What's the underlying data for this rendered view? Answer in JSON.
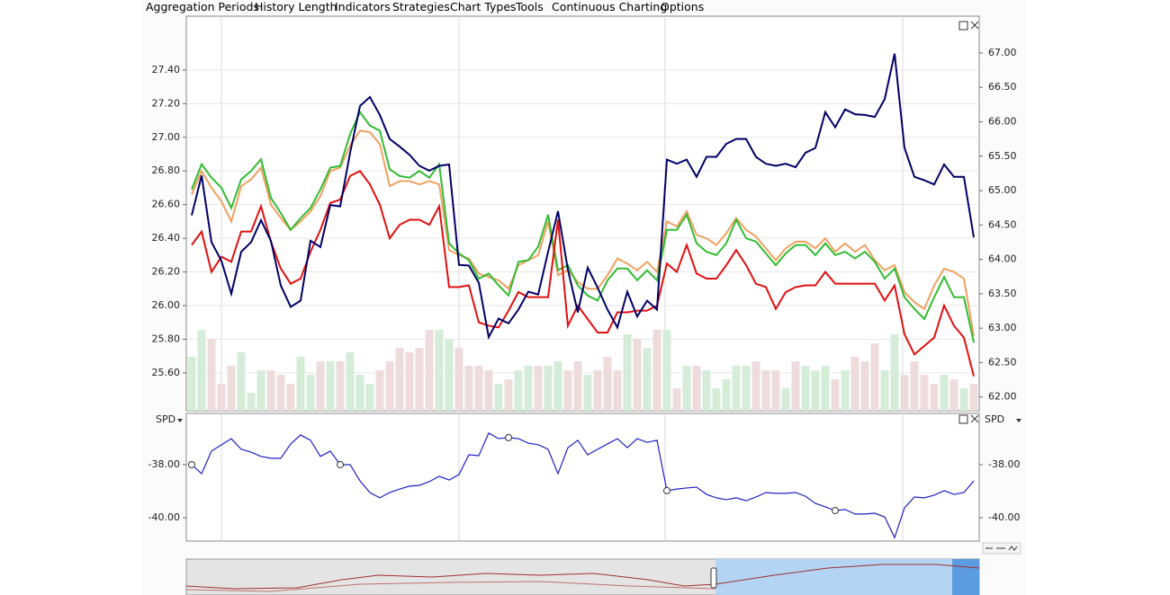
{
  "menu": [
    "Aggregation Periods",
    "History Length",
    "Indicators",
    "Strategies",
    "Chart Types",
    "Tools",
    "Continuous Charting",
    "Options"
  ],
  "chart_data": [
    {
      "type": "line",
      "ylim": [
        25.375,
        27.72
      ],
      "yticks": [
        {
          "value": 25.6,
          "label": "25.60"
        },
        {
          "value": 25.8,
          "label": "25.80"
        },
        {
          "value": 26.0,
          "label": "26.00"
        },
        {
          "value": 26.2,
          "label": "26.20"
        },
        {
          "value": 26.4,
          "label": "26.40"
        },
        {
          "value": 26.6,
          "label": "26.60"
        },
        {
          "value": 26.8,
          "label": "26.80"
        },
        {
          "value": 27.0,
          "label": "27.00"
        },
        {
          "value": 27.2,
          "label": "27.20"
        },
        {
          "value": 27.4,
          "label": "27.40"
        }
      ],
      "y2lim": [
        61.8,
        67.535
      ],
      "y2ticks": [
        {
          "value": 62.0,
          "label": "62.00"
        },
        {
          "value": 62.5,
          "label": "62.50"
        },
        {
          "value": 63.0,
          "label": "63.00"
        },
        {
          "value": 63.5,
          "label": "63.50"
        },
        {
          "value": 64.0,
          "label": "64.00"
        },
        {
          "value": 64.5,
          "label": "64.50"
        },
        {
          "value": 65.0,
          "label": "65.00"
        },
        {
          "value": 65.5,
          "label": "65.50"
        },
        {
          "value": 66.0,
          "label": "66.00"
        },
        {
          "value": 66.5,
          "label": "66.50"
        },
        {
          "value": 67.0,
          "label": "67.00"
        }
      ],
      "grid": true,
      "volume": {
        "up_color": "#d4ecd8",
        "down_color": "#eedcdc",
        "values": [
          60,
          90,
          80,
          30,
          50,
          65,
          20,
          45,
          45,
          40,
          30,
          60,
          40,
          55,
          55,
          55,
          65,
          40,
          30,
          45,
          55,
          70,
          65,
          70,
          90,
          90,
          80,
          70,
          50,
          50,
          45,
          30,
          35,
          45,
          50,
          50,
          50,
          55,
          45,
          55,
          40,
          45,
          60,
          45,
          85,
          80,
          70,
          90,
          90,
          25,
          50,
          50,
          45,
          25,
          35,
          50,
          50,
          55,
          45,
          45,
          25,
          55,
          50,
          45,
          50,
          35,
          45,
          60,
          55,
          75,
          45,
          85,
          40,
          55,
          40,
          30,
          40,
          35,
          25,
          30
        ]
      },
      "series": [
        {
          "color": "#f0a060",
          "values": [
            26.66,
            26.8,
            26.7,
            26.62,
            26.5,
            26.71,
            26.75,
            26.82,
            26.6,
            26.52,
            26.45,
            26.5,
            26.56,
            26.65,
            26.8,
            26.82,
            26.95,
            27.04,
            27.03,
            26.96,
            26.71,
            26.74,
            26.74,
            26.72,
            26.74,
            26.72,
            26.33,
            26.3,
            26.28,
            26.19,
            26.17,
            26.15,
            26.1,
            26.24,
            26.27,
            26.3,
            26.5,
            26.18,
            26.21,
            26.14,
            26.1,
            26.1,
            26.18,
            26.28,
            26.25,
            26.21,
            26.26,
            26.2,
            26.5,
            26.47,
            26.56,
            26.42,
            26.4,
            26.36,
            26.43,
            26.52,
            26.45,
            26.41,
            26.34,
            26.27,
            26.34,
            26.38,
            26.38,
            26.34,
            26.4,
            26.32,
            26.37,
            26.32,
            26.36,
            26.27,
            26.21,
            26.24,
            26.08,
            26.02,
            25.98,
            26.12,
            26.22,
            26.2,
            26.16,
            25.82
          ]
        },
        {
          "color": "#33bb33",
          "values": [
            26.69,
            26.84,
            26.76,
            26.7,
            26.58,
            26.75,
            26.8,
            26.87,
            26.64,
            26.55,
            26.45,
            26.52,
            26.58,
            26.69,
            26.82,
            26.83,
            27.02,
            27.15,
            27.07,
            27.04,
            26.81,
            26.77,
            26.76,
            26.8,
            26.76,
            26.84,
            26.37,
            26.31,
            26.27,
            26.16,
            26.19,
            26.12,
            26.06,
            26.26,
            26.27,
            26.35,
            26.54,
            26.21,
            26.24,
            26.12,
            26.06,
            26.03,
            26.15,
            26.22,
            26.22,
            26.15,
            26.21,
            26.15,
            26.45,
            26.45,
            26.54,
            26.37,
            26.32,
            26.3,
            26.37,
            26.51,
            26.4,
            26.38,
            26.31,
            26.24,
            26.31,
            26.36,
            26.36,
            26.3,
            26.37,
            26.3,
            26.32,
            26.28,
            26.32,
            26.26,
            26.16,
            26.22,
            26.05,
            25.98,
            25.92,
            26.05,
            26.17,
            26.05,
            26.05,
            25.78
          ]
        },
        {
          "color": "#e01010",
          "values": [
            26.36,
            26.44,
            26.2,
            26.29,
            26.26,
            26.44,
            26.44,
            26.59,
            26.38,
            26.22,
            26.13,
            26.16,
            26.32,
            26.45,
            26.61,
            26.63,
            26.77,
            26.8,
            26.72,
            26.6,
            26.4,
            26.48,
            26.51,
            26.51,
            26.48,
            26.59,
            26.11,
            26.11,
            26.12,
            25.9,
            25.88,
            25.87,
            25.97,
            26.08,
            26.05,
            26.05,
            26.05,
            26.51,
            25.88,
            26.0,
            25.92,
            25.84,
            25.84,
            25.96,
            25.96,
            25.97,
            25.97,
            26.0,
            26.25,
            26.2,
            26.36,
            26.19,
            26.16,
            26.16,
            26.24,
            26.33,
            26.24,
            26.13,
            26.11,
            25.98,
            26.08,
            26.11,
            26.12,
            26.12,
            26.2,
            26.13,
            26.13,
            26.13,
            26.13,
            26.13,
            26.03,
            26.12,
            25.83,
            25.71,
            25.76,
            25.81,
            26.0,
            25.88,
            25.81,
            25.58
          ]
        },
        {
          "color": "#000066",
          "axis": "y2",
          "values": [
            64.64,
            65.22,
            64.25,
            63.98,
            63.5,
            64.11,
            64.25,
            64.57,
            64.27,
            63.62,
            63.31,
            63.4,
            64.27,
            64.18,
            64.79,
            64.77,
            65.55,
            66.23,
            66.36,
            66.1,
            65.75,
            65.64,
            65.52,
            65.36,
            65.29,
            65.36,
            65.38,
            63.92,
            63.91,
            63.66,
            62.87,
            63.14,
            63.07,
            63.27,
            63.53,
            63.49,
            64.11,
            64.7,
            63.85,
            63.23,
            63.88,
            63.59,
            63.27,
            63.01,
            63.53,
            63.17,
            63.4,
            63.27,
            65.45,
            65.39,
            65.45,
            65.2,
            65.49,
            65.49,
            65.68,
            65.75,
            65.75,
            65.49,
            65.39,
            65.36,
            65.39,
            65.34,
            65.55,
            65.62,
            66.14,
            65.92,
            66.18,
            66.11,
            66.1,
            66.07,
            66.33,
            66.99,
            65.62,
            65.2,
            65.15,
            65.09,
            65.38,
            65.2,
            65.2,
            64.32
          ]
        }
      ]
    },
    {
      "type": "line",
      "label": "SPD",
      "ylim": [
        -40.88,
        -36.07
      ],
      "yticks": [
        {
          "value": -40,
          "label": "-40.00"
        },
        {
          "value": -38,
          "label": "-38.00"
        }
      ],
      "series": [
        {
          "color": "#2020c0",
          "markers": [
            0,
            15,
            32,
            48,
            65
          ],
          "values": [
            -38.0,
            -38.34,
            -37.49,
            -37.25,
            -37.02,
            -37.42,
            -37.53,
            -37.69,
            -37.76,
            -37.76,
            -37.22,
            -36.88,
            -37.08,
            -37.69,
            -37.49,
            -38.0,
            -38.0,
            -38.61,
            -39.05,
            -39.25,
            -39.05,
            -38.92,
            -38.81,
            -38.78,
            -38.64,
            -38.44,
            -38.58,
            -38.37,
            -37.63,
            -37.66,
            -36.81,
            -37.02,
            -36.98,
            -37.02,
            -37.19,
            -37.25,
            -37.42,
            -38.34,
            -37.36,
            -37.08,
            -37.63,
            -37.42,
            -37.22,
            -37.02,
            -37.36,
            -37.02,
            -37.16,
            -37.08,
            -38.98,
            -38.92,
            -38.88,
            -38.85,
            -39.12,
            -39.25,
            -39.32,
            -39.25,
            -39.36,
            -39.22,
            -39.05,
            -39.08,
            -39.08,
            -39.05,
            -39.19,
            -39.46,
            -39.59,
            -39.73,
            -39.69,
            -39.86,
            -39.86,
            -39.83,
            -39.97,
            -40.75,
            -39.63,
            -39.22,
            -39.25,
            -39.15,
            -38.98,
            -39.12,
            -39.05,
            -38.61
          ]
        }
      ]
    }
  ]
}
